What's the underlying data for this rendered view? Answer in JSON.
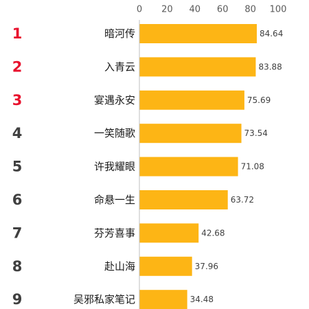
{
  "chart_data": {
    "type": "bar",
    "orientation": "horizontal",
    "ranks": [
      "1",
      "2",
      "3",
      "4",
      "5",
      "6",
      "7",
      "8",
      "9"
    ],
    "categories": [
      "暗河传",
      "入青云",
      "宴遇永安",
      "一笑随歌",
      "许我耀眼",
      "命悬一生",
      "芬芳喜事",
      "赴山海",
      "吴邪私家笔记"
    ],
    "values": [
      84.64,
      83.88,
      75.69,
      73.54,
      71.08,
      63.72,
      42.68,
      37.96,
      34.48
    ],
    "value_labels": [
      "84.64",
      "83.88",
      "75.69",
      "73.54",
      "71.08",
      "63.72",
      "42.68",
      "37.96",
      "34.48"
    ],
    "x_ticks": [
      0,
      20,
      40,
      60,
      80,
      100
    ],
    "x_tick_labels": [
      "0",
      "20",
      "40",
      "60",
      "80",
      "100"
    ],
    "xlim": [
      0,
      100
    ],
    "axis_position": "top",
    "grid": false,
    "title": "",
    "xlabel": "",
    "ylabel": "",
    "colors": {
      "bar": "#FDB515",
      "rank_top": "#E8112D",
      "rank_other": "#404040",
      "axis": "#BFBFBF"
    }
  }
}
